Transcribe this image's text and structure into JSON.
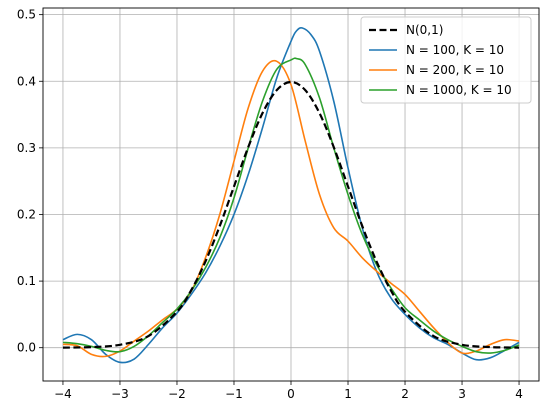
{
  "chart_data": {
    "type": "line",
    "title": "",
    "xlabel": "",
    "ylabel": "",
    "xlim": [
      -4.35,
      4.35
    ],
    "ylim": [
      -0.05,
      0.51
    ],
    "xticks": [
      -4,
      -3,
      -2,
      -1,
      0,
      1,
      2,
      3,
      4
    ],
    "xtick_labels": [
      "−4",
      "−3",
      "−2",
      "−1",
      "0",
      "1",
      "2",
      "3",
      "4"
    ],
    "yticks": [
      0.0,
      0.1,
      0.2,
      0.3,
      0.4,
      0.5
    ],
    "ytick_labels": [
      "0.0",
      "0.1",
      "0.2",
      "0.3",
      "0.4",
      "0.5"
    ],
    "grid": true,
    "legend_position": "top-right",
    "series": [
      {
        "name": "N(0,1)",
        "color": "#000000",
        "dash": "dashed",
        "x": [
          -4,
          -3.5,
          -3,
          -2.5,
          -2,
          -1.75,
          -1.5,
          -1.25,
          -1,
          -0.75,
          -0.5,
          -0.25,
          0,
          0.25,
          0.5,
          0.75,
          1,
          1.25,
          1.5,
          1.75,
          2,
          2.5,
          3,
          3.5,
          4
        ],
        "y": [
          0.0001,
          0.0009,
          0.0044,
          0.0175,
          0.054,
          0.0863,
          0.1295,
          0.1826,
          0.242,
          0.3011,
          0.3521,
          0.3867,
          0.3989,
          0.3867,
          0.3521,
          0.3011,
          0.242,
          0.1826,
          0.1295,
          0.0863,
          0.054,
          0.0175,
          0.0044,
          0.0009,
          0.0001
        ]
      },
      {
        "name": "N = 100, K = 10",
        "color": "#1f77b4",
        "dash": "solid",
        "x": [
          -4,
          -3.75,
          -3.5,
          -3.25,
          -3,
          -2.75,
          -2.5,
          -2.25,
          -2,
          -1.75,
          -1.5,
          -1.25,
          -1,
          -0.75,
          -0.5,
          -0.25,
          0,
          0.1,
          0.2,
          0.35,
          0.5,
          0.75,
          1,
          1.25,
          1.5,
          1.75,
          2,
          2.25,
          2.5,
          2.75,
          3,
          3.25,
          3.5,
          3.75,
          4
        ],
        "y": [
          0.012,
          0.02,
          0.012,
          -0.01,
          -0.022,
          -0.017,
          0.005,
          0.03,
          0.052,
          0.08,
          0.112,
          0.152,
          0.2,
          0.26,
          0.33,
          0.405,
          0.46,
          0.476,
          0.48,
          0.47,
          0.445,
          0.37,
          0.27,
          0.18,
          0.115,
          0.075,
          0.05,
          0.03,
          0.015,
          0.005,
          -0.008,
          -0.018,
          -0.015,
          -0.004,
          0.008
        ]
      },
      {
        "name": "N = 200, K = 10",
        "color": "#ff7f0e",
        "dash": "solid",
        "x": [
          -4,
          -3.75,
          -3.5,
          -3.25,
          -3,
          -2.75,
          -2.5,
          -2.25,
          -2,
          -1.75,
          -1.5,
          -1.25,
          -1,
          -0.75,
          -0.5,
          -0.25,
          0,
          0.25,
          0.5,
          0.75,
          1,
          1.25,
          1.5,
          1.75,
          2,
          2.25,
          2.5,
          2.75,
          3,
          3.25,
          3.5,
          3.75,
          4
        ],
        "y": [
          0.005,
          0.003,
          -0.01,
          -0.013,
          -0.005,
          0.01,
          0.025,
          0.042,
          0.058,
          0.085,
          0.135,
          0.2,
          0.28,
          0.36,
          0.415,
          0.43,
          0.395,
          0.31,
          0.23,
          0.18,
          0.16,
          0.135,
          0.115,
          0.097,
          0.08,
          0.055,
          0.03,
          0.008,
          -0.008,
          -0.005,
          0.005,
          0.012,
          0.01
        ]
      },
      {
        "name": "N = 1000, K = 10",
        "color": "#2ca02c",
        "dash": "solid",
        "x": [
          -4,
          -3.75,
          -3.5,
          -3.25,
          -3,
          -2.75,
          -2.5,
          -2.25,
          -2,
          -1.75,
          -1.5,
          -1.25,
          -1,
          -0.75,
          -0.5,
          -0.25,
          0,
          0.1,
          0.25,
          0.5,
          0.75,
          1,
          1.25,
          1.5,
          1.75,
          2,
          2.25,
          2.5,
          2.75,
          3,
          3.25,
          3.5,
          3.75,
          4
        ],
        "y": [
          0.008,
          0.006,
          0.002,
          -0.004,
          -0.006,
          0.002,
          0.018,
          0.038,
          0.058,
          0.085,
          0.12,
          0.165,
          0.225,
          0.3,
          0.37,
          0.418,
          0.432,
          0.434,
          0.425,
          0.375,
          0.3,
          0.23,
          0.17,
          0.125,
          0.09,
          0.06,
          0.042,
          0.025,
          0.012,
          0.002,
          -0.006,
          -0.008,
          -0.004,
          0.004
        ]
      }
    ]
  }
}
